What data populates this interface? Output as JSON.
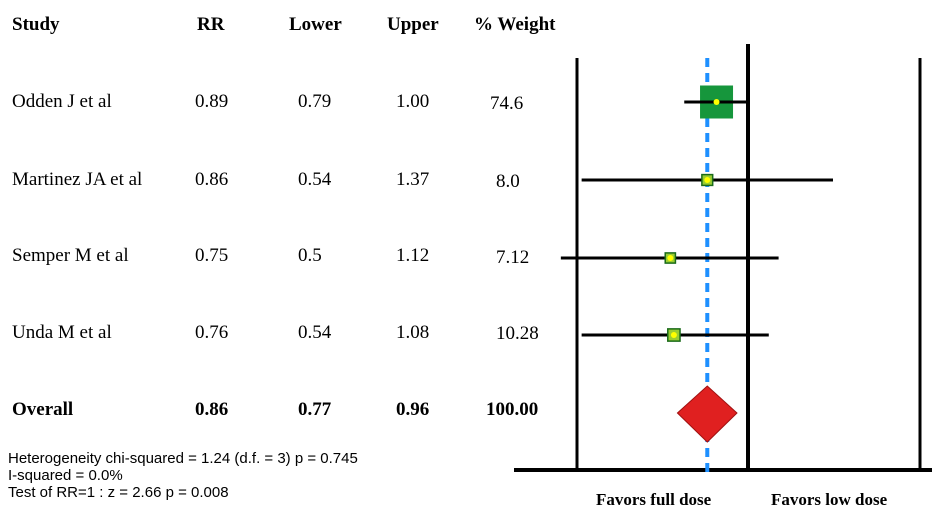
{
  "chart_data": {
    "type": "forest",
    "columns": {
      "study": "Study",
      "rr": "RR",
      "lower": "Lower",
      "upper": "Upper",
      "weight": "% Weight"
    },
    "studies": [
      {
        "study": "Odden J et al",
        "rr": "0.89",
        "lower": "0.79",
        "upper": "1.00",
        "weight": "74.6"
      },
      {
        "study": "Martinez JA et al",
        "rr": "0.86",
        "lower": "0.54",
        "upper": "1.37",
        "weight": "8.0"
      },
      {
        "study": "Semper M et al",
        "rr": "0.75",
        "lower": "0.5",
        "upper": "1.12",
        "weight": "7.12"
      },
      {
        "study": "Unda M et al",
        "rr": "0.76",
        "lower": "0.54",
        "upper": "1.08",
        "weight": "10.28"
      }
    ],
    "overall": {
      "study": "Overall",
      "rr": "0.86",
      "lower": "0.77",
      "upper": "0.96",
      "weight": "100.00"
    },
    "stats": [
      "Heterogeneity chi-squared = 1.24 (d.f. = 3) p = 0.745",
      "I-squared = 0.0%",
      "Test of RR=1 : z = 2.66 p = 0.008"
    ],
    "favors_left": "Favors full dose",
    "favors_right": "Favors low dose",
    "null_value": 1,
    "colors": {
      "box_large": "#16963c",
      "box_small": "#9acd32",
      "point": "#ffff00",
      "diamond": "#e02020",
      "overall_line": "#1e90ff",
      "axis": "#000000"
    }
  }
}
